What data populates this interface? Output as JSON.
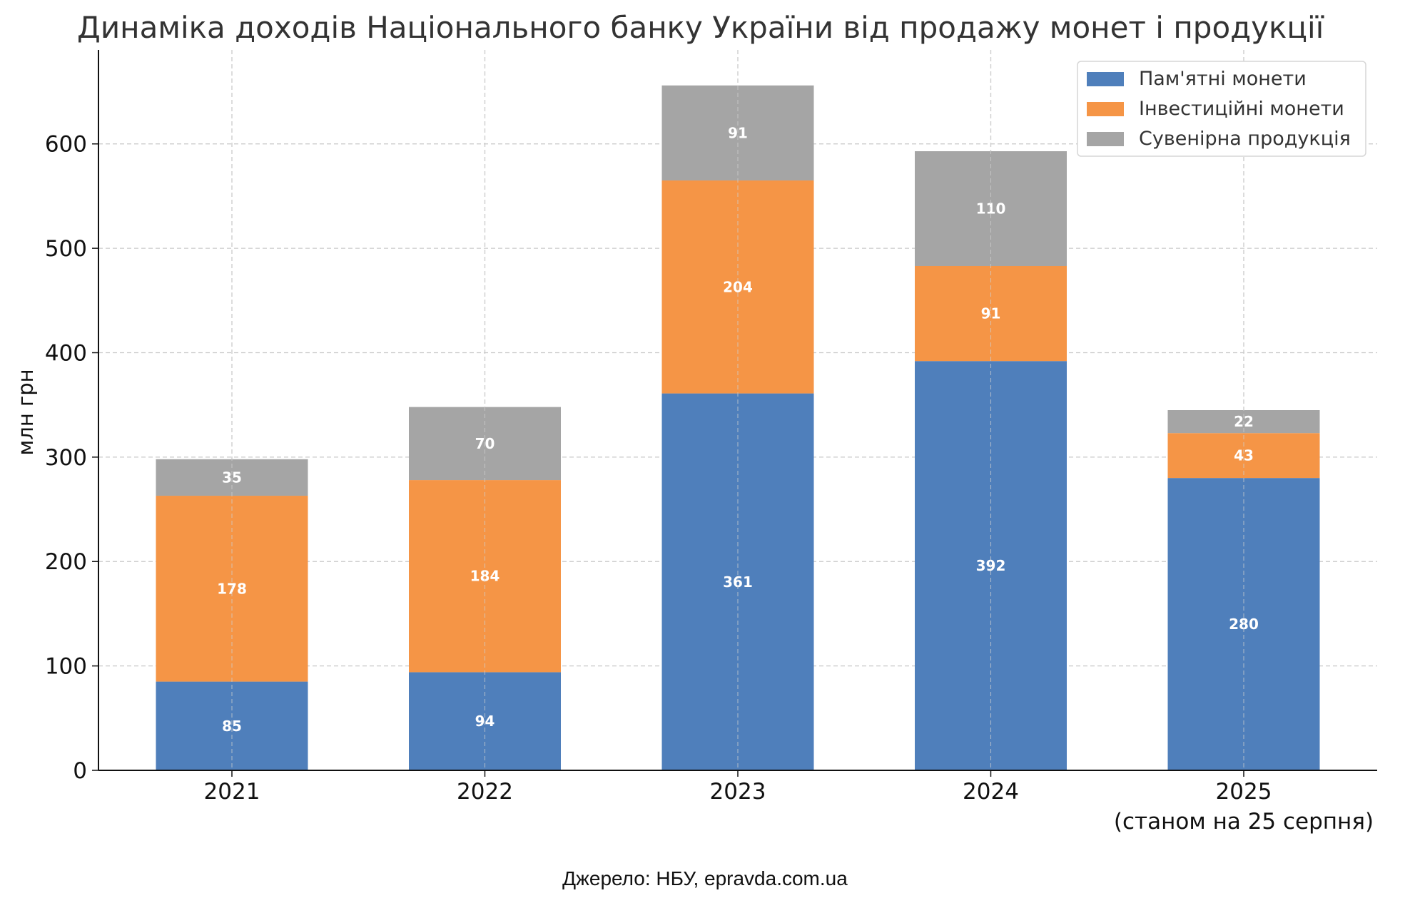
{
  "chart_data": {
    "type": "bar",
    "stacked": true,
    "title": "Динаміка доходів Національного банку України від продажу монет і продукції",
    "ylabel": "млн грн",
    "xlabel": "",
    "categories": [
      "2021",
      "2022",
      "2023",
      "2024",
      "2025"
    ],
    "category_sublabels": [
      "",
      "",
      "",
      "",
      "(станом на 25 серпня)"
    ],
    "ylim": [
      0,
      690
    ],
    "yticks": [
      0,
      100,
      200,
      300,
      400,
      500,
      600
    ],
    "grid": true,
    "legend_position": "top-right",
    "series": [
      {
        "name": "Пам'ятні монети",
        "color": "#4f7fbb",
        "values": [
          85,
          94,
          361,
          392,
          280
        ]
      },
      {
        "name": "Інвестиційні монети",
        "color": "#f59546",
        "values": [
          178,
          184,
          204,
          91,
          43
        ]
      },
      {
        "name": "Сувенірна продукція",
        "color": "#a5a5a5",
        "values": [
          35,
          70,
          91,
          110,
          22
        ]
      }
    ]
  },
  "source": "Джерело: НБУ, epravda.com.ua"
}
